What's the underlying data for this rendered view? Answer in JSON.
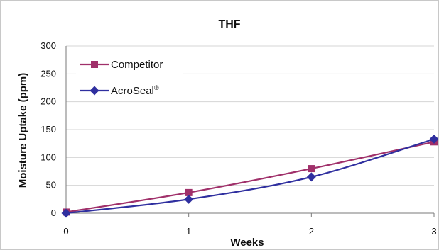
{
  "chart_data": {
    "type": "line",
    "title": "THF",
    "xlabel": "Weeks",
    "ylabel": "Moisture Uptake (ppm)",
    "x": [
      0,
      1,
      2,
      3
    ],
    "xlim": [
      0,
      3
    ],
    "ylim": [
      0,
      300
    ],
    "x_ticks": [
      "0",
      "1",
      "2",
      "3"
    ],
    "y_ticks": [
      "0",
      "50",
      "100",
      "150",
      "200",
      "250",
      "300"
    ],
    "grid": "horizontal",
    "legend_position": "top-left",
    "series": [
      {
        "name": "Competitor",
        "values": [
          2,
          37,
          80,
          128
        ],
        "color": "#a0306a",
        "marker": "square"
      },
      {
        "name": "AcroSeal",
        "name_mark": "®",
        "values": [
          0,
          25,
          65,
          133
        ],
        "color": "#2f2f9f",
        "marker": "diamond"
      }
    ]
  }
}
